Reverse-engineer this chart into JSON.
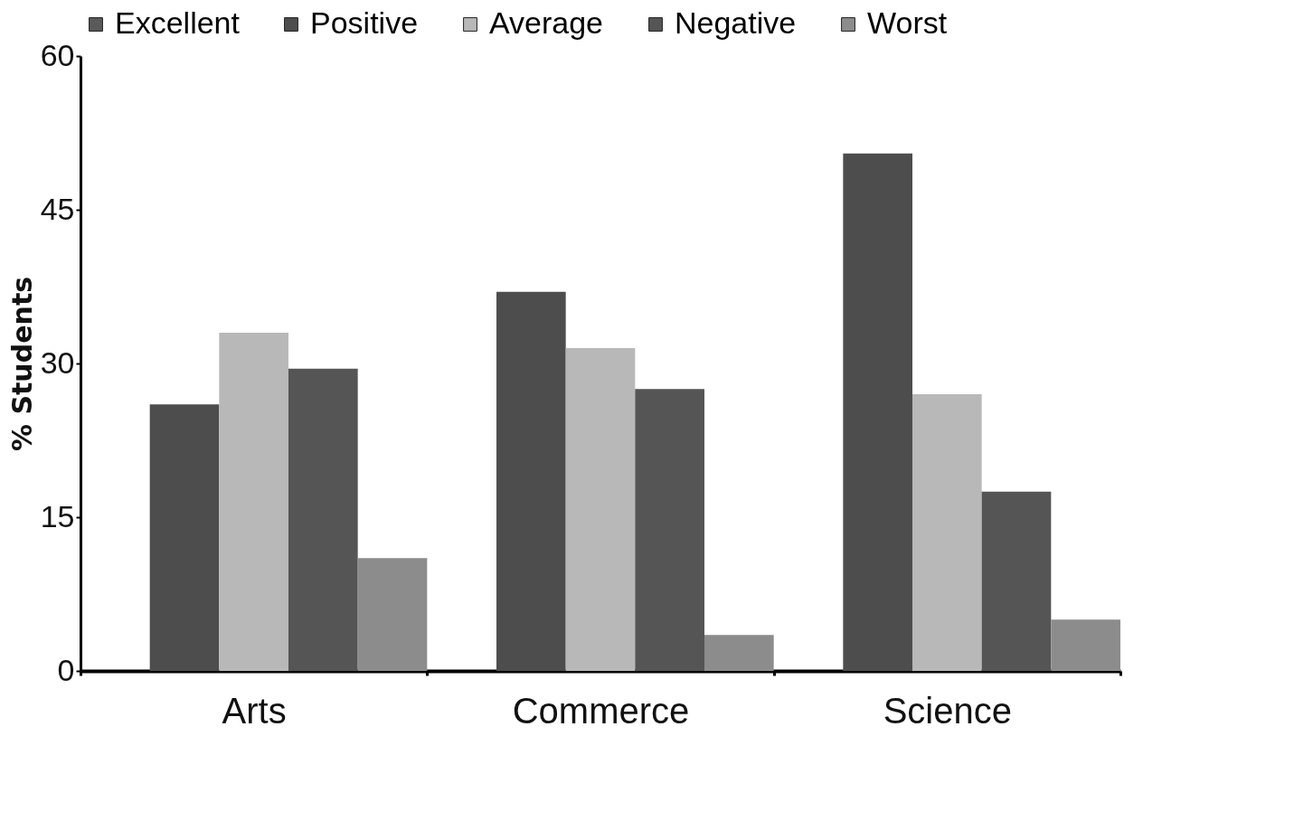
{
  "chart_data": {
    "type": "bar",
    "ylabel": "% Students",
    "categories": [
      "Arts",
      "Commerce",
      "Science"
    ],
    "series": [
      {
        "name": "Excellent",
        "color": "#5a5a5a",
        "values": [
          0,
          0,
          0
        ]
      },
      {
        "name": "Positive",
        "color": "#4d4d4d",
        "values": [
          26,
          37,
          50.5
        ]
      },
      {
        "name": "Average",
        "color": "#b8b8b8",
        "values": [
          33,
          31.5,
          27
        ]
      },
      {
        "name": "Negative",
        "color": "#555555",
        "values": [
          29.5,
          27.5,
          17.5
        ]
      },
      {
        "name": "Worst",
        "color": "#8c8c8c",
        "values": [
          11,
          3.5,
          5
        ]
      }
    ],
    "ylim": [
      0,
      60
    ],
    "yticks": [
      0,
      15,
      30,
      45,
      60
    ],
    "grid": false,
    "legend": "top"
  }
}
